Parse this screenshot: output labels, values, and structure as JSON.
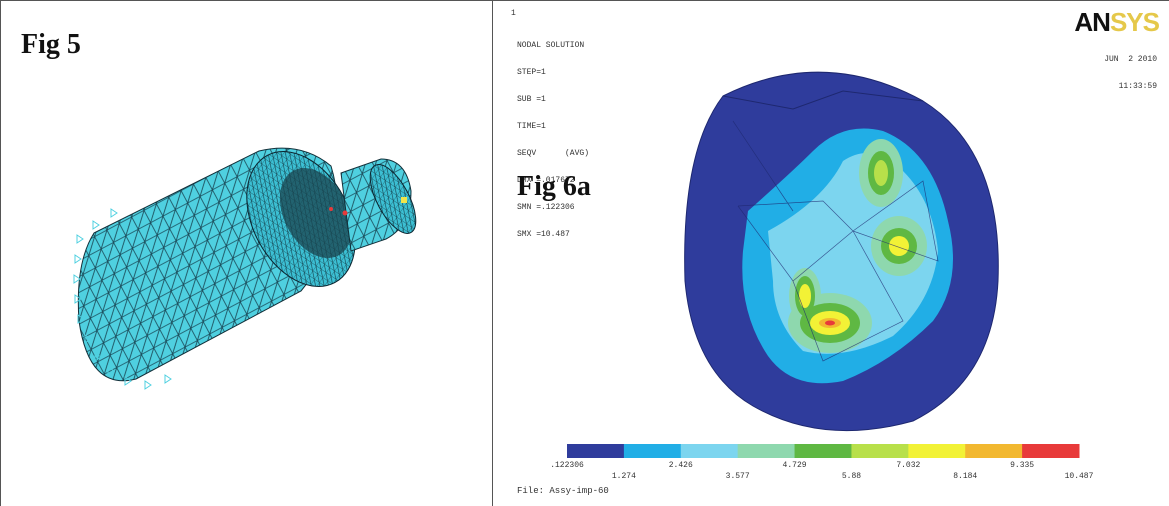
{
  "fig5": {
    "label": "Fig 5"
  },
  "fig6a": {
    "label": "Fig 6a",
    "marker": "1",
    "info_lines": [
      "NODAL SOLUTION",
      "STEP=1",
      "SUB =1",
      "TIME=1",
      "SEQV      (AVG)",
      "DMX =.017672",
      "SMN =.122306",
      "SMX =10.487"
    ],
    "date": "JUN  2 2010",
    "time": "11:33:59",
    "logo": {
      "part1": "AN",
      "part2": "SYS"
    },
    "legend": {
      "colors": [
        "#2f3c9c",
        "#21aee6",
        "#7cd5ef",
        "#8ed8ae",
        "#5fb843",
        "#b8e04a",
        "#f2f236",
        "#f2b830",
        "#e83a3a"
      ],
      "ticks_top": [
        ".122306",
        "2.426",
        "4.729",
        "7.032",
        "9.335"
      ],
      "ticks_bottom": [
        "1.274",
        "3.577",
        "5.88",
        "8.184",
        "10.487"
      ]
    },
    "file_line": "File: Assy-imp-60"
  }
}
